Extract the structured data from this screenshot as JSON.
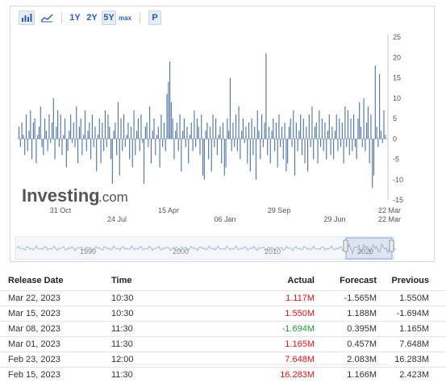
{
  "toolbar": {
    "buttons": [
      "1Y",
      "2Y",
      "5Y",
      "max",
      "P"
    ],
    "selected": "5Y",
    "icons": [
      "bar-chart-icon",
      "area-chart-icon"
    ]
  },
  "chart": {
    "brand": "Investing",
    "brand_suffix": ".com",
    "accent": "#4a73a8",
    "nav_years": [
      "1990",
      "2000",
      "2010",
      "2020"
    ]
  },
  "chart_data": {
    "type": "bar",
    "ylim": [
      -15,
      25
    ],
    "yticks": [
      25,
      20,
      15,
      10,
      5,
      0,
      -5,
      -10,
      -15
    ],
    "x_tick_labels_top": [
      "31 Oct",
      "15 Apr",
      "29 Sep",
      "22 Mar"
    ],
    "x_tick_labels_bottom": [
      "24 Jul",
      "06 Jan",
      "29 Jun",
      "22 Mar"
    ],
    "values": [
      3,
      -2,
      4,
      1,
      -4,
      6,
      -3,
      2,
      7,
      -5,
      4,
      5,
      -6,
      1,
      3,
      8,
      -2,
      -4,
      5,
      2,
      -3,
      6,
      -1,
      4,
      10,
      -5,
      3,
      7,
      -2,
      6,
      -4,
      1,
      5,
      -7,
      -3,
      2,
      6,
      -1,
      4,
      -2,
      8,
      -6,
      3,
      5,
      -4,
      1,
      7,
      -3,
      2,
      4,
      -5,
      6,
      -2,
      3,
      -8,
      1,
      5,
      -6,
      4,
      -3,
      7,
      -2,
      6,
      3,
      -5,
      -11,
      2,
      4,
      -4,
      9,
      -9,
      5,
      -3,
      6,
      -2,
      1,
      4,
      -5,
      3,
      -7,
      7,
      -4,
      2,
      5,
      -3,
      6,
      -1,
      -11,
      3,
      4,
      -2,
      8,
      -6,
      2,
      5,
      -4,
      1,
      3,
      -7,
      6,
      -2,
      4,
      -3,
      11,
      14,
      19,
      9,
      5,
      -5,
      2,
      4,
      -3,
      6,
      -8,
      2,
      5,
      -2,
      3,
      -6,
      1,
      4,
      -3,
      7,
      -2,
      5,
      3,
      -4,
      6,
      -9,
      -10,
      2,
      4,
      -5,
      3,
      -8,
      6,
      -2,
      5,
      -4,
      1,
      3,
      -6,
      4,
      -9,
      -7,
      5,
      2,
      15,
      -3,
      4,
      -2,
      6,
      -3,
      8,
      -5,
      2,
      5,
      -1,
      3,
      -6,
      4,
      -8,
      5,
      -4,
      3,
      -10,
      7,
      2,
      -5,
      6,
      -2,
      4,
      21,
      -4,
      3,
      -6,
      2,
      5,
      -3,
      4,
      -7,
      6,
      -2,
      3,
      -5,
      4,
      -8,
      -6,
      3,
      5,
      -2,
      7,
      -9,
      4,
      -3,
      2,
      6,
      -4,
      5,
      -6,
      3,
      -8,
      6,
      -2,
      8,
      -5,
      3,
      4,
      -6,
      7,
      -2,
      5,
      -3,
      4,
      -5,
      2,
      6,
      -4,
      3,
      -5,
      2,
      6,
      -3,
      5,
      -2,
      4,
      -6,
      8,
      -2,
      7,
      -4,
      5,
      -3,
      6,
      -2,
      -5,
      5,
      9,
      3,
      -2,
      10,
      -3,
      4,
      8,
      -6,
      6,
      -12,
      -9,
      18,
      3,
      -2,
      16,
      2,
      -1,
      7,
      1
    ]
  },
  "table": {
    "headers": {
      "date": "Release Date",
      "time": "Time",
      "actual": "Actual",
      "forecast": "Forecast",
      "previous": "Previous"
    },
    "rows": [
      {
        "date": "Mar 22, 2023",
        "time": "10:30",
        "actual": "1.117M",
        "actual_color": "red",
        "forecast": "-1.565M",
        "previous": "1.550M"
      },
      {
        "date": "Mar 15, 2023",
        "time": "10:30",
        "actual": "1.550M",
        "actual_color": "red",
        "forecast": "1.188M",
        "previous": "-1.694M"
      },
      {
        "date": "Mar 08, 2023",
        "time": "11:30",
        "actual": "-1.694M",
        "actual_color": "green",
        "forecast": "0.395M",
        "previous": "1.165M"
      },
      {
        "date": "Mar 01, 2023",
        "time": "11:30",
        "actual": "1.165M",
        "actual_color": "red",
        "forecast": "0.457M",
        "previous": "7.648M"
      },
      {
        "date": "Feb 23, 2023",
        "time": "12:00",
        "actual": "7.648M",
        "actual_color": "red",
        "forecast": "2.083M",
        "previous": "16.283M"
      },
      {
        "date": "Feb 15, 2023",
        "time": "11:30",
        "actual": "16.283M",
        "actual_color": "red",
        "forecast": "1.166M",
        "previous": "2.423M"
      }
    ]
  }
}
